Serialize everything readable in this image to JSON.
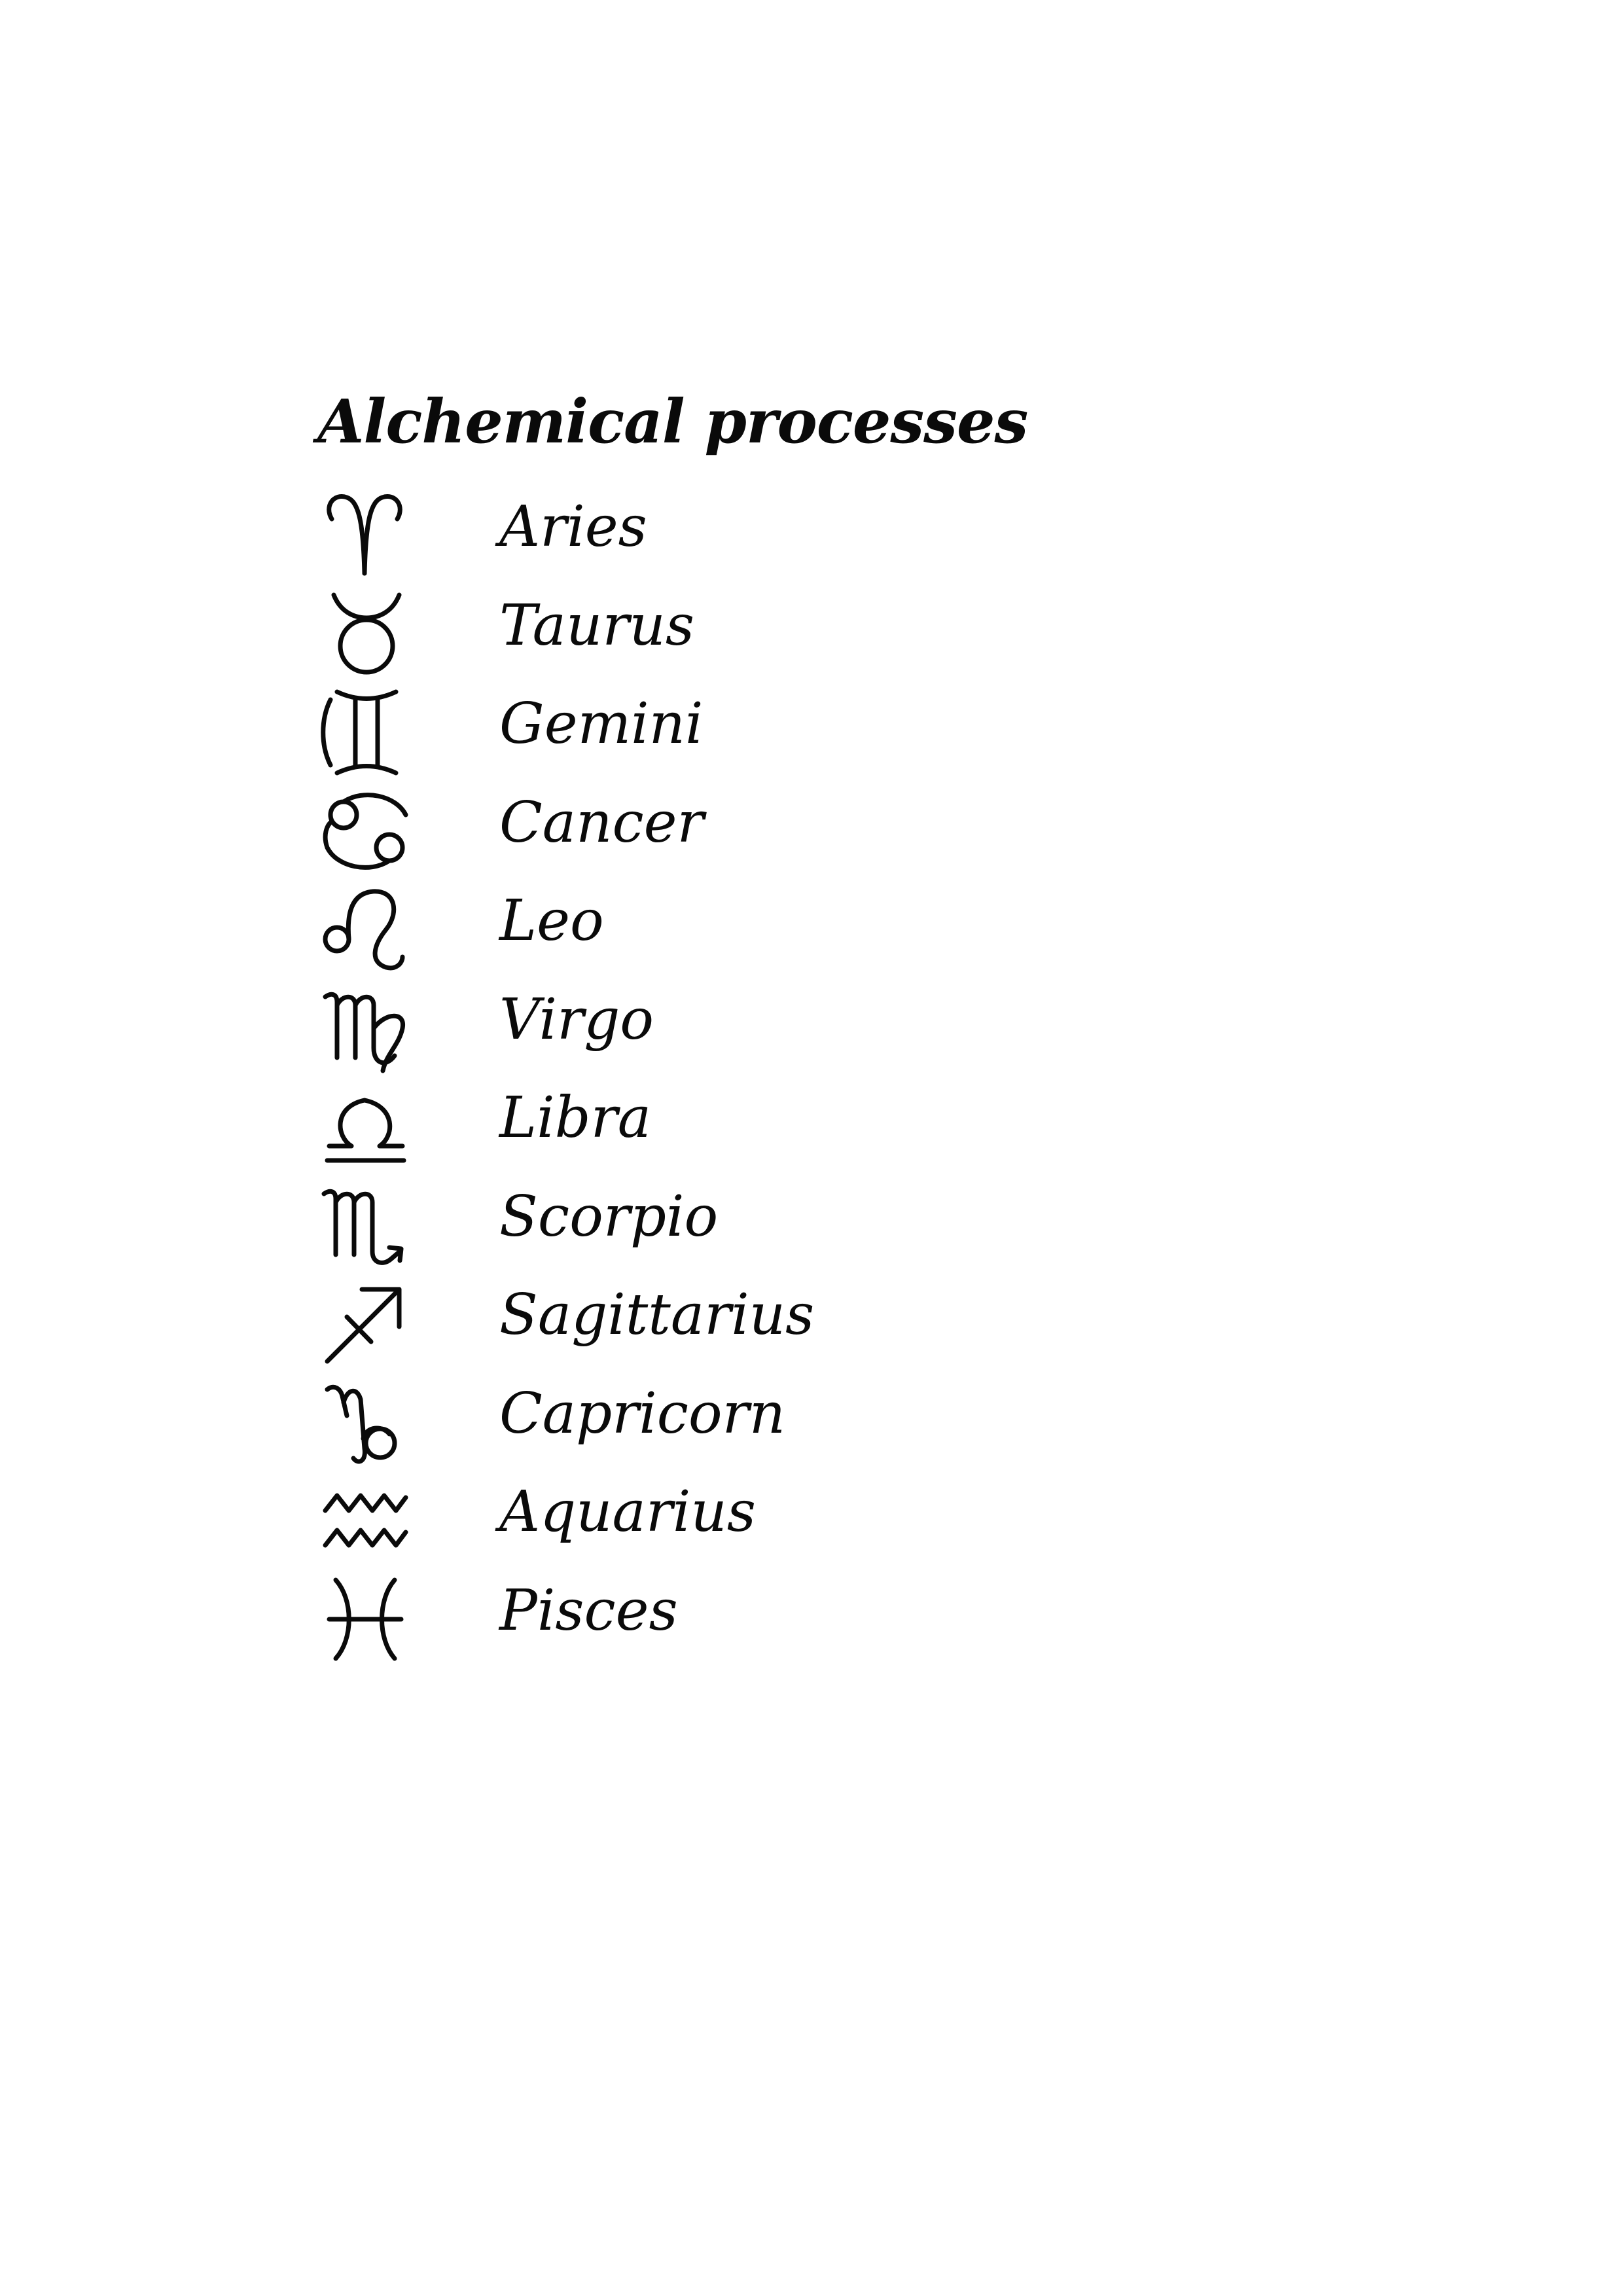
{
  "title": "Alchemical processes",
  "signs": [
    {
      "label": "Aries",
      "icon": "aries-icon"
    },
    {
      "label": "Taurus",
      "icon": "taurus-icon"
    },
    {
      "label": "Gemini",
      "icon": "gemini-icon"
    },
    {
      "label": "Cancer",
      "icon": "cancer-icon"
    },
    {
      "label": "Leo",
      "icon": "leo-icon"
    },
    {
      "label": "Virgo",
      "icon": "virgo-icon"
    },
    {
      "label": "Libra",
      "icon": "libra-icon"
    },
    {
      "label": "Scorpio",
      "icon": "scorpio-icon"
    },
    {
      "label": "Sagittarius",
      "icon": "sagittarius-icon"
    },
    {
      "label": "Capricorn",
      "icon": "capricorn-icon"
    },
    {
      "label": "Aquarius",
      "icon": "aquarius-icon"
    },
    {
      "label": "Pisces",
      "icon": "pisces-icon"
    }
  ],
  "colors": {
    "ink": "#0a0a0a",
    "background": "#ffffff"
  }
}
